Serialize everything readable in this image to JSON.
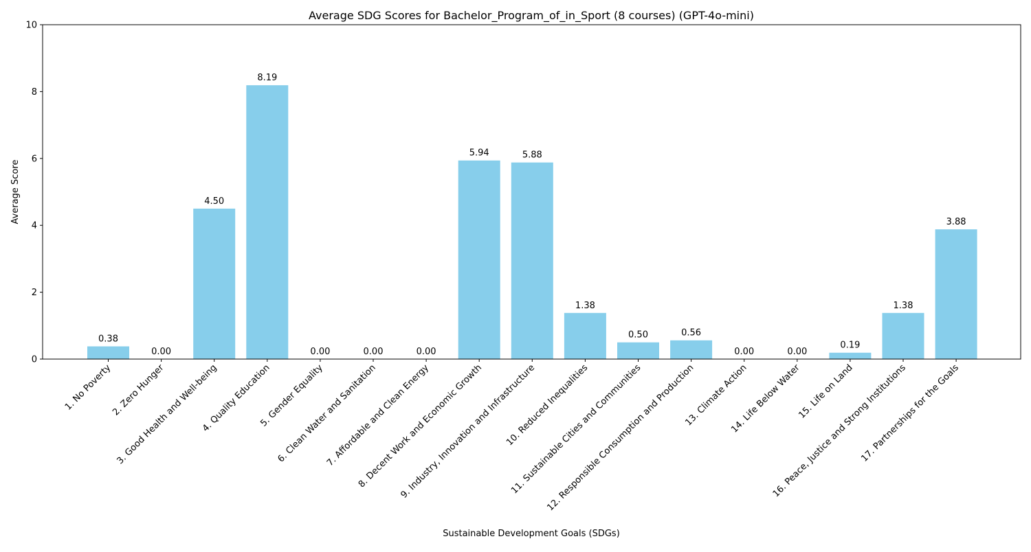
{
  "chart_data": {
    "type": "bar",
    "title": "Average SDG Scores for Bachelor_Program_of_in_Sport (8 courses) (GPT-4o-mini)",
    "xlabel": "Sustainable Development Goals (SDGs)",
    "ylabel": "Average Score",
    "ylim": [
      0,
      10
    ],
    "yticks": [
      "0",
      "2",
      "4",
      "6",
      "8",
      "10"
    ],
    "grid": false,
    "bar_color": "#87CEEB",
    "categories": [
      "1. No Poverty",
      "2. Zero Hunger",
      "3. Good Health and Well-being",
      "4. Quality Education",
      "5. Gender Equality",
      "6. Clean Water and Sanitation",
      "7. Affordable and Clean Energy",
      "8. Decent Work and Economic Growth",
      "9. Industry, Innovation and Infrastructure",
      "10. Reduced Inequalities",
      "11. Sustainable Cities and Communities",
      "12. Responsible Consumption and Production",
      "13. Climate Action",
      "14. Life Below Water",
      "15. Life on Land",
      "16. Peace, Justice and Strong Institutions",
      "17. Partnerships for the Goals"
    ],
    "values": [
      0.38,
      0.0,
      4.5,
      8.19,
      0.0,
      0.0,
      0.0,
      5.94,
      5.88,
      1.38,
      0.5,
      0.56,
      0.0,
      0.0,
      0.19,
      1.38,
      3.88
    ],
    "data_labels": [
      "0.38",
      "0.00",
      "4.50",
      "8.19",
      "0.00",
      "0.00",
      "0.00",
      "5.94",
      "5.88",
      "1.38",
      "0.50",
      "0.56",
      "0.00",
      "0.00",
      "0.19",
      "1.38",
      "3.88"
    ]
  }
}
